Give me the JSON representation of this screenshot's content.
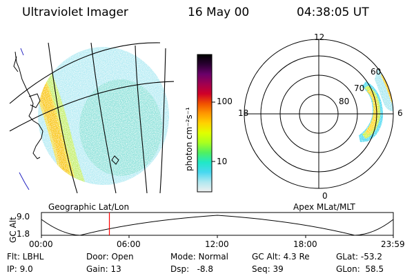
{
  "header": {
    "title": "Ultraviolet Imager",
    "date": "16 May 00",
    "time": "04:38:05 UT"
  },
  "colorbar": {
    "unit_label": "photon cm⁻²s⁻¹",
    "ticks": [
      "100",
      "10"
    ],
    "colors": [
      "#000000",
      "#2a0032",
      "#6a006a",
      "#a00050",
      "#d00028",
      "#f05000",
      "#ff9800",
      "#ffd200",
      "#e0ff00",
      "#a8ff20",
      "#50f060",
      "#20e8c8",
      "#48d8f0",
      "#b0e8f0",
      "#f0f0f0"
    ]
  },
  "polar_plot": {
    "dir_labels": {
      "top": "12",
      "left": "18",
      "right": "6",
      "bottom": "0"
    },
    "lat_labels": [
      "60",
      "70",
      "80"
    ]
  },
  "map_label": "Geographic Lat/Lon",
  "polar_label": "Apex MLat/MLT",
  "timeline": {
    "axis_label": "GC Alt",
    "y_top": "9.0",
    "y_bottom": "1.8",
    "x_ticks": [
      "00:00",
      "06:00",
      "12:00",
      "18:00",
      "23:59"
    ],
    "marker_time": "04:38",
    "marker_color": "#ff0000"
  },
  "info": {
    "flt": "Flt: LBHL",
    "ip": "IP: 9.0",
    "door": "Door: Open",
    "gain": "Gain: 13",
    "mode": "Mode: Normal",
    "dsp": "Dsp:   -8.8",
    "gcalt": "GC Alt: 4.3 Re",
    "seq": "Seq: 39",
    "glat": "GLat: -53.2",
    "glon": "GLon:  58.5"
  }
}
